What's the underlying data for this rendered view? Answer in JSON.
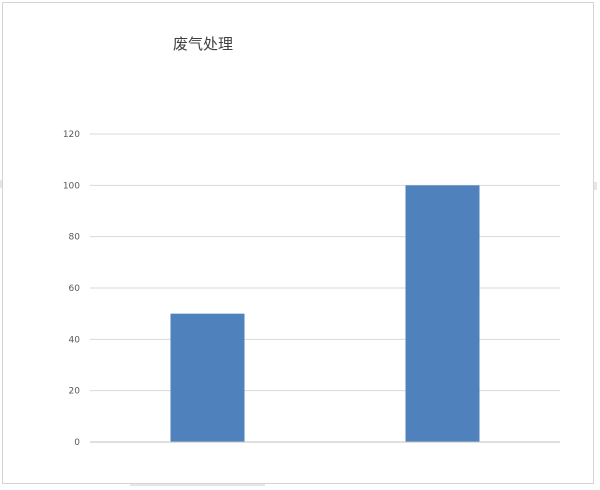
{
  "chart_data": {
    "type": "bar",
    "title": "废气处理",
    "categories": [
      "",
      ""
    ],
    "values": [
      50,
      100
    ],
    "ylim": [
      0,
      120
    ],
    "yticks": [
      0,
      20,
      40,
      60,
      80,
      100,
      120
    ],
    "ytick_labels": [
      "0",
      "20",
      "40",
      "60",
      "80",
      "100",
      "120"
    ],
    "grid": true,
    "legend": "none",
    "bar_color": "#4f81bd"
  }
}
